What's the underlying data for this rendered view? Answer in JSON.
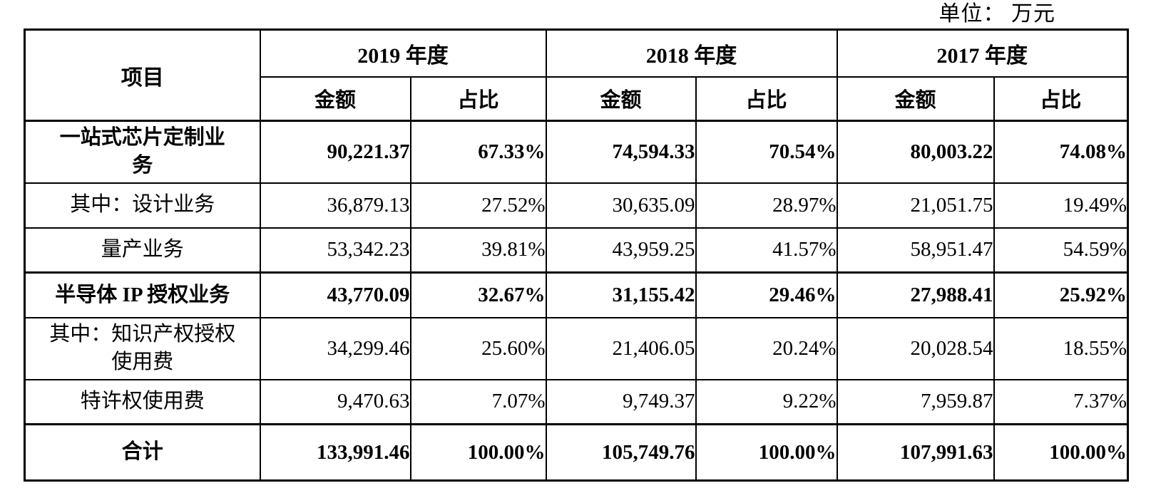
{
  "unit_label": "单位： 万元",
  "table": {
    "item_header": "项目",
    "year_groups": [
      {
        "year": "2019 年度",
        "sub": [
          "金额",
          "占比"
        ]
      },
      {
        "year": "2018 年度",
        "sub": [
          "金额",
          "占比"
        ]
      },
      {
        "year": "2017 年度",
        "sub": [
          "金额",
          "占比"
        ]
      }
    ],
    "rows": [
      {
        "label": "一站式芯片定制业务",
        "values": [
          "90,221.37",
          "67.33%",
          "74,594.33",
          "70.54%",
          "80,003.22",
          "74.08%"
        ]
      },
      {
        "label": "其中：设计业务",
        "values": [
          "36,879.13",
          "27.52%",
          "30,635.09",
          "28.97%",
          "21,051.75",
          "19.49%"
        ]
      },
      {
        "label": "量产业务",
        "values": [
          "53,342.23",
          "39.81%",
          "43,959.25",
          "41.57%",
          "58,951.47",
          "54.59%"
        ]
      },
      {
        "label": "半导体 IP 授权业务",
        "values": [
          "43,770.09",
          "32.67%",
          "31,155.42",
          "29.46%",
          "27,988.41",
          "25.92%"
        ]
      },
      {
        "label": "其中：知识产权授权使用费",
        "values": [
          "34,299.46",
          "25.60%",
          "21,406.05",
          "20.24%",
          "20,028.54",
          "18.55%"
        ]
      },
      {
        "label": "特许权使用费",
        "values": [
          "9,470.63",
          "7.07%",
          "9,749.37",
          "9.22%",
          "7,959.87",
          "7.37%"
        ]
      },
      {
        "label": "合计",
        "values": [
          "133,991.46",
          "100.00%",
          "105,749.76",
          "100.00%",
          "107,991.63",
          "100.00%"
        ]
      }
    ]
  }
}
